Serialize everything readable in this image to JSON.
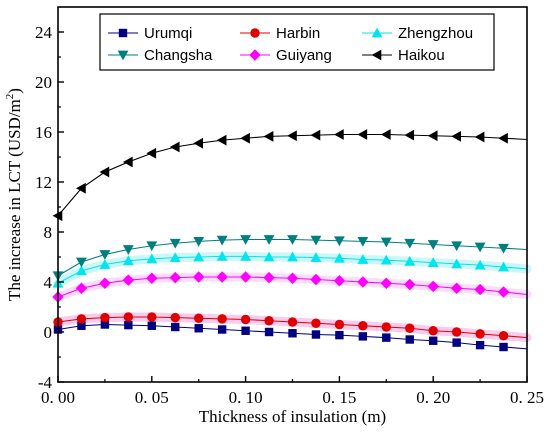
{
  "chart_data": {
    "type": "line",
    "title": "",
    "xlabel": "Thickness of insulation (m)",
    "ylabel": "The increase in LCT (USD/m",
    "ylabel_sup": "2",
    "ylabel_end": ")",
    "xlim": [
      0.0,
      0.25
    ],
    "ylim": [
      -4,
      26
    ],
    "x_ticks": [
      "0. 00",
      "0. 05",
      "0. 10",
      "0. 15",
      "0. 20",
      "0. 25"
    ],
    "x_tick_values": [
      0.0,
      0.05,
      0.1,
      0.15,
      0.2,
      0.25
    ],
    "y_ticks": [
      "-4",
      "0",
      "4",
      "8",
      "12",
      "16",
      "20",
      "24"
    ],
    "y_tick_values": [
      -4,
      0,
      4,
      8,
      12,
      16,
      20,
      24
    ],
    "grid": false,
    "legend_position": "top",
    "x": [
      0.0,
      0.0125,
      0.025,
      0.0375,
      0.05,
      0.0625,
      0.075,
      0.0875,
      0.1,
      0.1125,
      0.125,
      0.1375,
      0.15,
      0.1625,
      0.175,
      0.1875,
      0.2,
      0.2125,
      0.225,
      0.2375
    ],
    "series": [
      {
        "name": "Urumqi",
        "color": "#000080",
        "marker": "square",
        "band": "",
        "values": [
          0.2,
          0.5,
          0.6,
          0.55,
          0.5,
          0.4,
          0.3,
          0.2,
          0.1,
          0.0,
          -0.1,
          -0.2,
          -0.25,
          -0.35,
          -0.45,
          -0.6,
          -0.7,
          -0.85,
          -1.05,
          -1.2
        ]
      },
      {
        "name": "Harbin",
        "color": "#e00000",
        "marker": "circle",
        "band": "#f4a0e0",
        "values": [
          0.8,
          1.05,
          1.15,
          1.2,
          1.2,
          1.15,
          1.1,
          1.05,
          1.0,
          0.9,
          0.8,
          0.7,
          0.6,
          0.5,
          0.4,
          0.3,
          0.1,
          0.0,
          -0.15,
          -0.3
        ]
      },
      {
        "name": "Zhengzhou",
        "color": "#00e5ee",
        "marker": "triangle-up",
        "band": "#a0f0f0",
        "values": [
          3.9,
          4.9,
          5.4,
          5.7,
          5.85,
          5.95,
          6.0,
          6.05,
          6.05,
          6.0,
          6.0,
          5.95,
          5.9,
          5.8,
          5.75,
          5.65,
          5.55,
          5.45,
          5.35,
          5.2
        ]
      },
      {
        "name": "Changsha",
        "color": "#007f7f",
        "marker": "triangle-down",
        "band": "",
        "values": [
          4.5,
          5.6,
          6.2,
          6.6,
          6.9,
          7.1,
          7.25,
          7.35,
          7.4,
          7.4,
          7.4,
          7.35,
          7.3,
          7.25,
          7.2,
          7.1,
          7.0,
          6.9,
          6.8,
          6.7
        ]
      },
      {
        "name": "Guiyang",
        "color": "#ff00ff",
        "marker": "diamond",
        "band": "#f8c0f8",
        "values": [
          2.8,
          3.5,
          3.9,
          4.15,
          4.3,
          4.35,
          4.4,
          4.4,
          4.4,
          4.35,
          4.3,
          4.2,
          4.1,
          4.0,
          3.9,
          3.8,
          3.65,
          3.5,
          3.4,
          3.2
        ]
      },
      {
        "name": "Haikou",
        "color": "#000000",
        "marker": "triangle-left",
        "band": "",
        "values": [
          9.3,
          11.5,
          12.8,
          13.6,
          14.3,
          14.8,
          15.1,
          15.35,
          15.5,
          15.65,
          15.7,
          15.75,
          15.8,
          15.8,
          15.8,
          15.75,
          15.7,
          15.65,
          15.6,
          15.5
        ]
      }
    ]
  }
}
